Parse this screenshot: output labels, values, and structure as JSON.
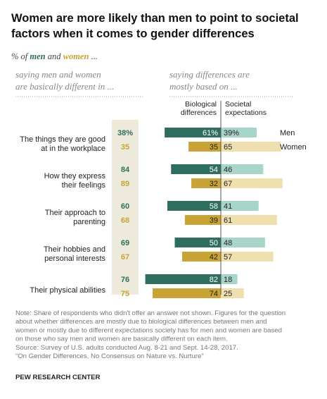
{
  "chart_data": {
    "type": "bar",
    "title_lines": [
      "Women are more likely than men to point to societal",
      "factors when it comes to gender differences"
    ],
    "subtitle": {
      "prefix": "% of ",
      "men": "men",
      "and": " and ",
      "women": "women",
      "suffix": " ..."
    },
    "left_header": [
      "saying men and women",
      "are basically different in ..."
    ],
    "right_header": [
      "saying differences are",
      "mostly based on ..."
    ],
    "column_headers": {
      "biological": [
        "Biological",
        "differences"
      ],
      "societal": [
        "Societal",
        "expectations"
      ]
    },
    "legend": {
      "men": "Men",
      "women": "Women"
    },
    "colors": {
      "men_biological": "#2e6e5e",
      "men_societal": "#a8d5c9",
      "women_biological": "#c9a336",
      "women_societal": "#f0dfae",
      "men_text": "#2e6e5e",
      "women_text": "#c9a336",
      "shade": "#eeeadb"
    },
    "categories": [
      {
        "lines": [
          "The things they are good",
          "at in the workplace"
        ],
        "men": {
          "different": "38%",
          "biological": 61,
          "biological_label": "61%",
          "societal": 39,
          "societal_label": "39%"
        },
        "women": {
          "different": "35",
          "biological": 35,
          "biological_label": "35",
          "societal": 65,
          "societal_label": "65"
        }
      },
      {
        "lines": [
          "How they express",
          "their feelings"
        ],
        "men": {
          "different": "84",
          "biological": 54,
          "biological_label": "54",
          "societal": 46,
          "societal_label": "46"
        },
        "women": {
          "different": "89",
          "biological": 32,
          "biological_label": "32",
          "societal": 67,
          "societal_label": "67"
        }
      },
      {
        "lines": [
          "Their approach to",
          "parenting"
        ],
        "men": {
          "different": "60",
          "biological": 58,
          "biological_label": "58",
          "societal": 41,
          "societal_label": "41"
        },
        "women": {
          "different": "68",
          "biological": 39,
          "biological_label": "39",
          "societal": 61,
          "societal_label": "61"
        }
      },
      {
        "lines": [
          "Their hobbies and",
          "personal interests"
        ],
        "men": {
          "different": "69",
          "biological": 50,
          "biological_label": "50",
          "societal": 48,
          "societal_label": "48"
        },
        "women": {
          "different": "67",
          "biological": 42,
          "biological_label": "42",
          "societal": 57,
          "societal_label": "57"
        }
      },
      {
        "lines": [
          "Their physical abilities"
        ],
        "men": {
          "different": "76",
          "biological": 82,
          "biological_label": "82",
          "societal": 18,
          "societal_label": "18"
        },
        "women": {
          "different": "75",
          "biological": 74,
          "biological_label": "74",
          "societal": 25,
          "societal_label": "25"
        }
      }
    ],
    "note_lines": [
      "Note: Share of respondents who didn't offer an answer not shown. Figures for the question",
      "about whether differences are mostly due to biological differences between men and",
      "women or mostly due to different expectations society has for men and women are based",
      "on those who say men and women are basically different on each item.",
      "Source: Survey of U.S. adults conducted Aug. 8-21 and Sept. 14-28, 2017.",
      "“On Gender Differences, No Consensus on Nature vs. Nurture”"
    ],
    "source_org": "PEW RESEARCH CENTER"
  }
}
